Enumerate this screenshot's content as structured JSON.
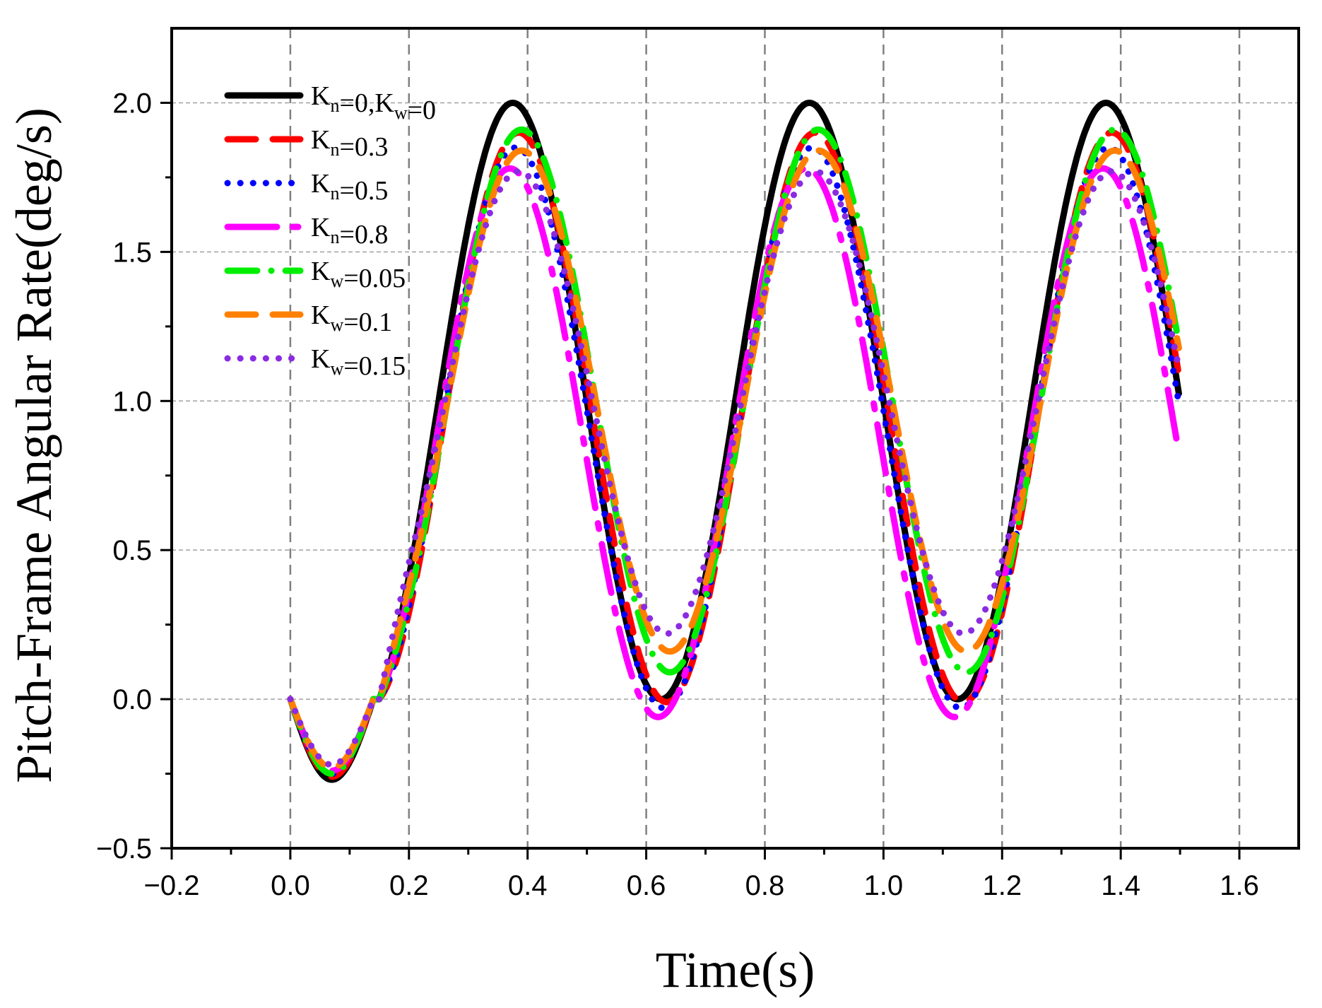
{
  "chart_data": {
    "type": "line",
    "title": "",
    "xlabel": "Time(s)",
    "ylabel": "Pitch-Frame Angular Rate(deg/s)",
    "xlim": [
      -0.2,
      1.7
    ],
    "ylim": [
      -0.5,
      2.25
    ],
    "xticks": [
      -0.2,
      0.0,
      0.2,
      0.4,
      0.6,
      0.8,
      1.0,
      1.2,
      1.4,
      1.6
    ],
    "xtick_labels": [
      "−0.2",
      "0.0",
      "0.2",
      "0.4",
      "0.6",
      "0.8",
      "1.0",
      "1.2",
      "1.4",
      "1.6"
    ],
    "yticks": [
      -0.5,
      0.0,
      0.5,
      1.0,
      1.5,
      2.0
    ],
    "ytick_labels": [
      "−0.5",
      "0.0",
      "0.5",
      "1.0",
      "1.5",
      "2.0"
    ],
    "grid": true,
    "legend_position": "top-left",
    "series": [
      {
        "name": "Kn=0,Kw=0",
        "legend": {
          "parts": [
            [
              "K",
              ""
            ],
            [
              "n",
              "sub"
            ],
            [
              "=0,K",
              ""
            ],
            [
              "w",
              "sub"
            ],
            [
              "=0",
              ""
            ]
          ]
        },
        "color": "#000000",
        "style": "solid",
        "width": 9,
        "amp": 1.0,
        "offset": 0.0,
        "phase": 0.0,
        "points": [
          [
            0.0,
            0.0
          ],
          [
            0.07,
            -0.27
          ],
          [
            0.375,
            2.0
          ],
          [
            0.625,
            0.0
          ],
          [
            0.875,
            2.0
          ],
          [
            1.125,
            0.0
          ],
          [
            1.375,
            2.0
          ],
          [
            1.5,
            1.0
          ]
        ]
      },
      {
        "name": "Kn=0.3",
        "legend": {
          "parts": [
            [
              "K",
              ""
            ],
            [
              "n",
              "sub"
            ],
            [
              "=0.3",
              ""
            ]
          ]
        },
        "color": "#ff0000",
        "style": "dash",
        "width": 9,
        "amp": 0.95,
        "offset": 0.0,
        "phase": 0.01,
        "points": [
          [
            0.0,
            0.0
          ],
          [
            0.07,
            -0.26
          ],
          [
            0.385,
            1.9
          ],
          [
            0.625,
            -0.01
          ],
          [
            0.885,
            1.9
          ],
          [
            1.125,
            -0.01
          ],
          [
            1.385,
            1.9
          ],
          [
            1.5,
            0.97
          ]
        ]
      },
      {
        "name": "Kn=0.5",
        "legend": {
          "parts": [
            [
              "K",
              ""
            ],
            [
              "n",
              "sub"
            ],
            [
              "=0.5",
              ""
            ]
          ]
        },
        "color": "#0000ff",
        "style": "dot",
        "width": 9,
        "amp": 0.93,
        "offset": -0.05,
        "phase": 0.01,
        "points": [
          [
            0.0,
            0.0
          ],
          [
            0.07,
            -0.25
          ],
          [
            0.38,
            1.85
          ],
          [
            0.625,
            -0.03
          ],
          [
            0.88,
            1.85
          ],
          [
            1.125,
            -0.03
          ],
          [
            1.38,
            1.84
          ],
          [
            1.5,
            0.85
          ]
        ]
      },
      {
        "name": "Kn=0.8",
        "legend": {
          "parts": [
            [
              "K",
              ""
            ],
            [
              "n",
              "sub"
            ],
            [
              "=0.8",
              ""
            ]
          ]
        },
        "color": "#ff00ff",
        "style": "longdash",
        "width": 9,
        "amp": 0.92,
        "offset": -0.12,
        "phase": -0.005,
        "points": [
          [
            0.0,
            0.0
          ],
          [
            0.07,
            -0.24
          ],
          [
            0.37,
            1.78
          ],
          [
            0.62,
            -0.06
          ],
          [
            0.87,
            1.78
          ],
          [
            1.12,
            -0.06
          ],
          [
            1.37,
            1.78
          ],
          [
            1.5,
            0.8
          ]
        ]
      },
      {
        "name": "Kw=0.05",
        "legend": {
          "parts": [
            [
              "K",
              ""
            ],
            [
              "w",
              "sub"
            ],
            [
              "=0.05",
              ""
            ]
          ]
        },
        "color": "#00ee00",
        "style": "dashdot",
        "width": 9,
        "amp": 0.91,
        "offset": 0.09,
        "phase": 0.015,
        "points": [
          [
            0.0,
            0.0
          ],
          [
            0.07,
            -0.25
          ],
          [
            0.39,
            1.91
          ],
          [
            0.635,
            0.09
          ],
          [
            0.89,
            1.91
          ],
          [
            1.135,
            0.09
          ],
          [
            1.39,
            1.91
          ],
          [
            1.5,
            1.1
          ]
        ]
      },
      {
        "name": "Kw=0.1",
        "legend": {
          "parts": [
            [
              "K",
              ""
            ],
            [
              "w",
              "sub"
            ],
            [
              "=0.1",
              ""
            ]
          ]
        },
        "color": "#ff8000",
        "style": "dash",
        "width": 9,
        "amp": 0.84,
        "offset": 0.17,
        "phase": 0.015,
        "points": [
          [
            0.0,
            0.0
          ],
          [
            0.07,
            -0.23
          ],
          [
            0.39,
            1.84
          ],
          [
            0.645,
            0.16
          ],
          [
            0.89,
            1.84
          ],
          [
            1.145,
            0.16
          ],
          [
            1.39,
            1.84
          ],
          [
            1.5,
            1.1
          ]
        ]
      },
      {
        "name": "Kw=0.15",
        "legend": {
          "parts": [
            [
              "K",
              ""
            ],
            [
              "w",
              "sub"
            ],
            [
              "=0.15",
              ""
            ]
          ]
        },
        "color": "#8a2be2",
        "style": "dot",
        "width": 9,
        "amp": 0.78,
        "offset": 0.22,
        "phase": 0.015,
        "points": [
          [
            0.0,
            0.0
          ],
          [
            0.07,
            -0.22
          ],
          [
            0.385,
            1.77
          ],
          [
            0.64,
            0.22
          ],
          [
            0.885,
            1.77
          ],
          [
            1.14,
            0.22
          ],
          [
            1.385,
            1.77
          ],
          [
            1.5,
            1.12
          ]
        ]
      }
    ]
  }
}
